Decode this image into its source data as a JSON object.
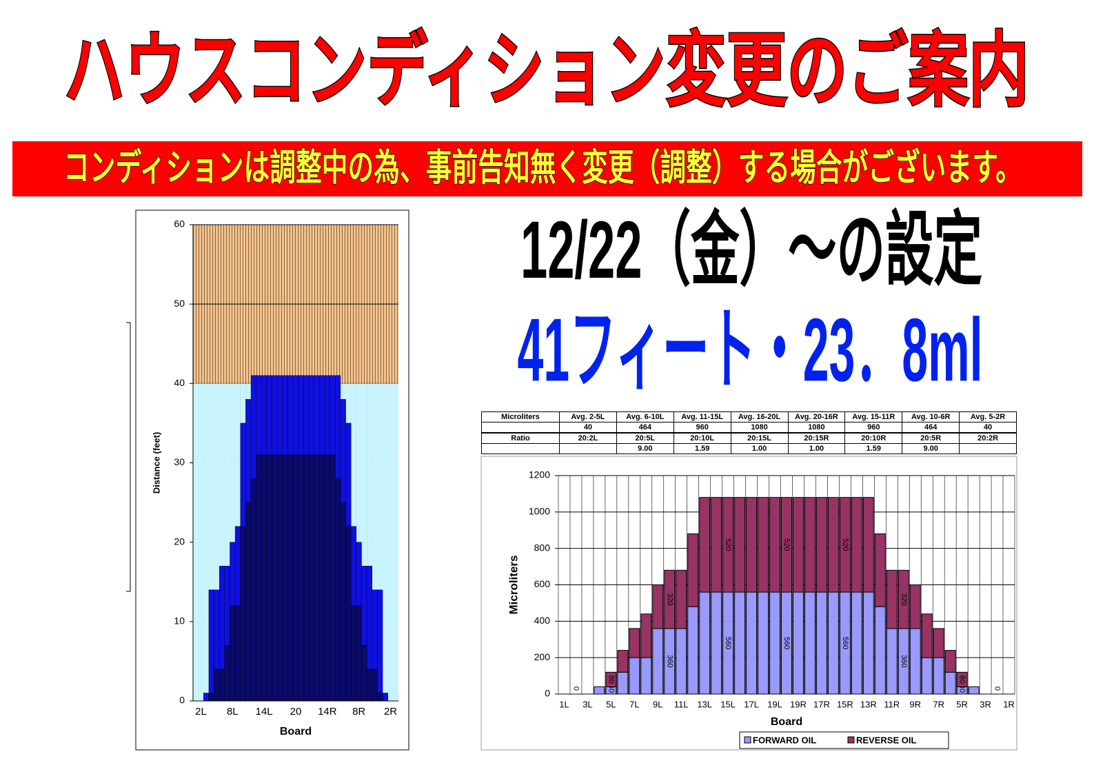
{
  "header": {
    "title": "ハウスコンディション変更のご案内",
    "banner": "コンディションは調整中の為、事前告知無く変更（調整）する場合がございます。",
    "date": "12/22（金）～の設定",
    "setting": "41フィート・23．8ml"
  },
  "table": {
    "rows": [
      [
        "Microliters",
        "Avg. 2-5L",
        "Avg. 6-10L",
        "Avg. 11-15L",
        "Avg. 16-20L",
        "Avg. 20-16R",
        "Avg. 15-11R",
        "Avg. 10-6R",
        "Avg. 5-2R"
      ],
      [
        null,
        "40",
        "464",
        "960",
        "1080",
        "1080",
        "960",
        "464",
        "40"
      ],
      [
        "Ratio",
        "20:2L",
        "20:5L",
        "20:10L",
        "20:15L",
        "20:15R",
        "20:10R",
        "20:5R",
        "20:2R"
      ],
      [
        null,
        null,
        "9.00",
        "1.59",
        "1.00",
        "1.00",
        "1.59",
        "9.00",
        null
      ]
    ]
  },
  "chart_data": [
    {
      "type": "step-columns",
      "y_label": "Distance (feet)",
      "x_label": "Board",
      "categories": [
        null,
        "2L",
        null,
        null,
        null,
        null,
        null,
        "8L",
        null,
        null,
        null,
        null,
        null,
        "14L",
        null,
        null,
        null,
        null,
        null,
        "20",
        null,
        null,
        null,
        null,
        null,
        "14R",
        null,
        null,
        null,
        null,
        null,
        "8R",
        null,
        null,
        null,
        null,
        null,
        "2R",
        null
      ],
      "series": [
        {
          "color": "#c8f4ff",
          "values": [
            40,
            40,
            40,
            40,
            40,
            40,
            40,
            40,
            40,
            40,
            40,
            40,
            40,
            40,
            40,
            40,
            40,
            40,
            40,
            40,
            40,
            40,
            40,
            40,
            40,
            40,
            40,
            40,
            40,
            40,
            40,
            40,
            40,
            40,
            40,
            40,
            40,
            40,
            40
          ]
        },
        {
          "color": "#1010e0",
          "values": [
            0,
            0,
            1,
            14,
            14,
            17,
            17,
            20,
            22,
            35,
            38,
            41,
            41,
            41,
            41,
            41,
            41,
            41,
            41,
            41,
            41,
            41,
            41,
            41,
            41,
            41,
            41,
            41,
            38,
            35,
            22,
            20,
            17,
            17,
            14,
            14,
            1,
            0,
            0
          ]
        },
        {
          "color": "#0a0a6a",
          "values": [
            0,
            0,
            0,
            1,
            4,
            4,
            7,
            12,
            12,
            22,
            25,
            28,
            31,
            31,
            31,
            31,
            31,
            31,
            31,
            31,
            31,
            31,
            31,
            31,
            31,
            31,
            31,
            28,
            25,
            22,
            12,
            12,
            7,
            4,
            4,
            1,
            0,
            0,
            0
          ]
        }
      ],
      "ylim": [
        0,
        60
      ],
      "yticks": [
        0,
        10,
        20,
        30,
        40,
        50,
        60
      ],
      "grid": true
    },
    {
      "type": "stacked-bar",
      "y_label": "Microliters",
      "x_label": "Board",
      "categories": [
        "1L",
        null,
        "3L",
        null,
        "5L",
        null,
        "7L",
        null,
        "9L",
        null,
        "11L",
        null,
        "13L",
        null,
        "15L",
        null,
        "17L",
        null,
        "19L",
        null,
        "19R",
        null,
        "17R",
        null,
        "15R",
        null,
        "13R",
        null,
        "11R",
        null,
        "9R",
        null,
        "7R",
        null,
        "5R",
        null,
        "3R",
        null,
        "1R"
      ],
      "series": [
        {
          "name": "FORWARD OIL",
          "color": "#9999ff",
          "values": [
            0,
            0,
            0,
            40,
            40,
            120,
            200,
            200,
            360,
            360,
            360,
            480,
            560,
            560,
            560,
            560,
            560,
            560,
            560,
            560,
            560,
            560,
            560,
            560,
            560,
            560,
            560,
            480,
            360,
            360,
            360,
            200,
            200,
            120,
            40,
            40,
            0,
            0,
            0
          ],
          "value_labels": [
            null,
            "0",
            null,
            null,
            "40",
            null,
            null,
            null,
            null,
            "360",
            null,
            null,
            null,
            null,
            "560",
            null,
            null,
            null,
            null,
            "560",
            null,
            null,
            null,
            null,
            "560",
            null,
            null,
            null,
            null,
            "360",
            null,
            null,
            null,
            null,
            "40",
            null,
            null,
            "0",
            null
          ]
        },
        {
          "name": "REVERSE OIL",
          "color": "#993366",
          "values": [
            0,
            0,
            0,
            0,
            80,
            120,
            160,
            240,
            240,
            320,
            320,
            400,
            520,
            520,
            520,
            520,
            520,
            520,
            520,
            520,
            520,
            520,
            520,
            520,
            520,
            520,
            520,
            400,
            320,
            320,
            240,
            240,
            160,
            120,
            80,
            0,
            0,
            0,
            0
          ],
          "value_labels": [
            null,
            null,
            null,
            null,
            "80",
            null,
            null,
            null,
            null,
            "320",
            null,
            null,
            null,
            null,
            "520",
            null,
            null,
            null,
            null,
            "520",
            null,
            null,
            null,
            null,
            "520",
            null,
            null,
            null,
            null,
            "320",
            null,
            null,
            null,
            null,
            "80",
            null,
            null,
            null,
            null
          ]
        }
      ],
      "ylim": [
        0,
        1200
      ],
      "yticks": [
        0,
        200,
        400,
        600,
        800,
        1000,
        1200
      ],
      "grid": true,
      "legend": "bottom"
    }
  ]
}
